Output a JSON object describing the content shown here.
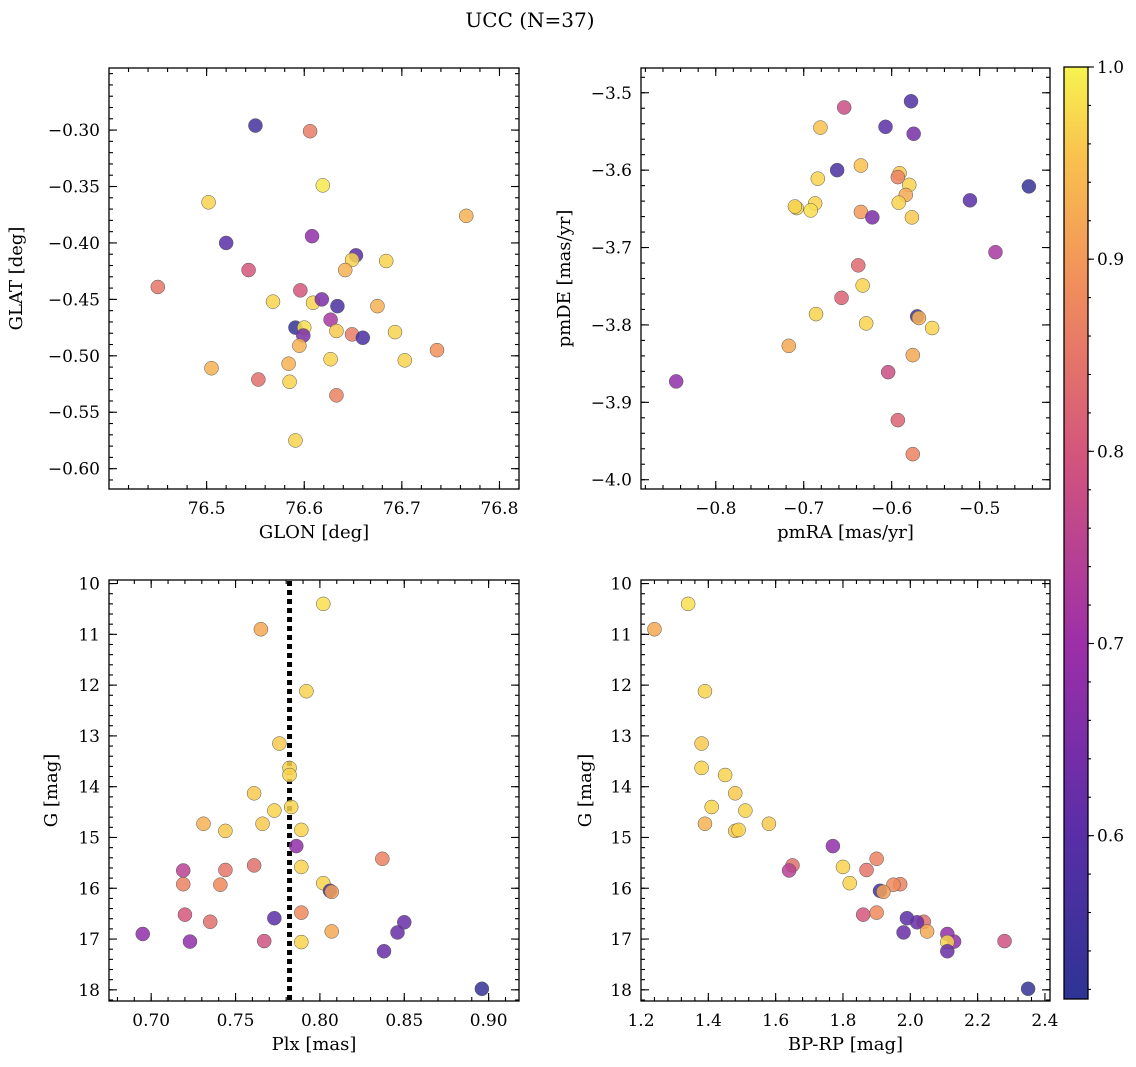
{
  "title": "UCC (N=37)",
  "colorbar": {
    "min": 0.515,
    "max": 1.0,
    "ticks": [
      1.0,
      0.9,
      0.8,
      0.7,
      0.6
    ],
    "tick_labels": [
      "1.0",
      "0.9",
      "0.8",
      "0.7",
      "0.6"
    ],
    "colormap": "plasma"
  },
  "chart_data": [
    {
      "type": "scatter",
      "name": "sky-positions",
      "xlabel": "GLON [deg]",
      "ylabel": "GLAT [deg]",
      "xlim": [
        76.4,
        76.82
      ],
      "ylim": [
        -0.618,
        -0.245
      ],
      "xticks": [
        76.5,
        76.6,
        76.7,
        76.8
      ],
      "xtick_labels": [
        "76.5",
        "76.6",
        "76.7",
        "76.8"
      ],
      "yticks": [
        -0.3,
        -0.35,
        -0.4,
        -0.45,
        -0.5,
        -0.55,
        -0.6
      ],
      "ytick_labels": [
        "−0.30",
        "−0.35",
        "−0.40",
        "−0.45",
        "−0.50",
        "−0.55",
        "−0.60"
      ],
      "inverted_y": false,
      "points": [
        {
          "x": 76.55,
          "y": -0.296,
          "c": 0.56
        },
        {
          "x": 76.606,
          "y": -0.301,
          "c": 0.86
        },
        {
          "x": 76.619,
          "y": -0.349,
          "c": 0.99
        },
        {
          "x": 76.502,
          "y": -0.364,
          "c": 0.97
        },
        {
          "x": 76.766,
          "y": -0.376,
          "c": 0.93
        },
        {
          "x": 76.608,
          "y": -0.394,
          "c": 0.68
        },
        {
          "x": 76.52,
          "y": -0.4,
          "c": 0.6
        },
        {
          "x": 76.653,
          "y": -0.411,
          "c": 0.6
        },
        {
          "x": 76.649,
          "y": -0.415,
          "c": 0.97
        },
        {
          "x": 76.684,
          "y": -0.416,
          "c": 0.97
        },
        {
          "x": 76.543,
          "y": -0.424,
          "c": 0.8
        },
        {
          "x": 76.642,
          "y": -0.424,
          "c": 0.93
        },
        {
          "x": 76.45,
          "y": -0.439,
          "c": 0.85
        },
        {
          "x": 76.596,
          "y": -0.442,
          "c": 0.8
        },
        {
          "x": 76.568,
          "y": -0.452,
          "c": 0.97
        },
        {
          "x": 76.609,
          "y": -0.453,
          "c": 0.97
        },
        {
          "x": 76.618,
          "y": -0.45,
          "c": 0.65
        },
        {
          "x": 76.634,
          "y": -0.456,
          "c": 0.57
        },
        {
          "x": 76.675,
          "y": -0.456,
          "c": 0.93
        },
        {
          "x": 76.627,
          "y": -0.468,
          "c": 0.72
        },
        {
          "x": 76.591,
          "y": -0.475,
          "c": 0.53
        },
        {
          "x": 76.6,
          "y": -0.475,
          "c": 0.98
        },
        {
          "x": 76.599,
          "y": -0.482,
          "c": 0.65
        },
        {
          "x": 76.633,
          "y": -0.478,
          "c": 0.96
        },
        {
          "x": 76.693,
          "y": -0.479,
          "c": 0.97
        },
        {
          "x": 76.649,
          "y": -0.481,
          "c": 0.86
        },
        {
          "x": 76.66,
          "y": -0.484,
          "c": 0.57
        },
        {
          "x": 76.595,
          "y": -0.491,
          "c": 0.93
        },
        {
          "x": 76.736,
          "y": -0.495,
          "c": 0.89
        },
        {
          "x": 76.627,
          "y": -0.503,
          "c": 0.97
        },
        {
          "x": 76.703,
          "y": -0.504,
          "c": 0.97
        },
        {
          "x": 76.584,
          "y": -0.507,
          "c": 0.93
        },
        {
          "x": 76.505,
          "y": -0.511,
          "c": 0.93
        },
        {
          "x": 76.553,
          "y": -0.521,
          "c": 0.84
        },
        {
          "x": 76.585,
          "y": -0.523,
          "c": 0.97
        },
        {
          "x": 76.633,
          "y": -0.535,
          "c": 0.87
        },
        {
          "x": 76.591,
          "y": -0.575,
          "c": 0.97
        }
      ]
    },
    {
      "type": "scatter",
      "name": "proper-motions",
      "xlabel": "pmRA [mas/yr]",
      "ylabel": "pmDE [mas/yr]",
      "xlim": [
        -0.885,
        -0.42
      ],
      "ylim": [
        -4.012,
        -3.468
      ],
      "xticks": [
        -0.8,
        -0.7,
        -0.6,
        -0.5
      ],
      "xtick_labels": [
        "−0.8",
        "−0.7",
        "−0.6",
        "−0.5"
      ],
      "yticks": [
        -3.5,
        -3.6,
        -3.7,
        -3.8,
        -3.9,
        -4.0
      ],
      "ytick_labels": [
        "−3.5",
        "−3.6",
        "−3.7",
        "−3.8",
        "−3.9",
        "−4.0"
      ],
      "inverted_y": false,
      "points": [
        {
          "x": -0.578,
          "y": -3.511,
          "c": 0.58
        },
        {
          "x": -0.654,
          "y": -3.519,
          "c": 0.78
        },
        {
          "x": -0.681,
          "y": -3.545,
          "c": 0.95
        },
        {
          "x": -0.607,
          "y": -3.544,
          "c": 0.6
        },
        {
          "x": -0.575,
          "y": -3.553,
          "c": 0.64
        },
        {
          "x": -0.635,
          "y": -3.594,
          "c": 0.95
        },
        {
          "x": -0.662,
          "y": -3.6,
          "c": 0.57
        },
        {
          "x": -0.591,
          "y": -3.604,
          "c": 0.96
        },
        {
          "x": -0.593,
          "y": -3.609,
          "c": 0.87
        },
        {
          "x": -0.684,
          "y": -3.611,
          "c": 0.97
        },
        {
          "x": -0.58,
          "y": -3.619,
          "c": 0.97
        },
        {
          "x": -0.444,
          "y": -3.621,
          "c": 0.53
        },
        {
          "x": -0.584,
          "y": -3.632,
          "c": 0.92
        },
        {
          "x": -0.592,
          "y": -3.642,
          "c": 0.97
        },
        {
          "x": -0.511,
          "y": -3.639,
          "c": 0.6
        },
        {
          "x": -0.687,
          "y": -3.643,
          "c": 0.97
        },
        {
          "x": -0.708,
          "y": -3.649,
          "c": 0.97
        },
        {
          "x": -0.71,
          "y": -3.647,
          "c": 0.97
        },
        {
          "x": -0.692,
          "y": -3.652,
          "c": 0.98
        },
        {
          "x": -0.635,
          "y": -3.654,
          "c": 0.9
        },
        {
          "x": -0.622,
          "y": -3.661,
          "c": 0.65
        },
        {
          "x": -0.577,
          "y": -3.661,
          "c": 0.96
        },
        {
          "x": -0.482,
          "y": -3.706,
          "c": 0.72
        },
        {
          "x": -0.638,
          "y": -3.723,
          "c": 0.83
        },
        {
          "x": -0.633,
          "y": -3.749,
          "c": 0.97
        },
        {
          "x": -0.657,
          "y": -3.765,
          "c": 0.82
        },
        {
          "x": -0.686,
          "y": -3.786,
          "c": 0.97
        },
        {
          "x": -0.571,
          "y": -3.789,
          "c": 0.55
        },
        {
          "x": -0.569,
          "y": -3.791,
          "c": 0.93
        },
        {
          "x": -0.629,
          "y": -3.798,
          "c": 0.97
        },
        {
          "x": -0.554,
          "y": -3.804,
          "c": 0.97
        },
        {
          "x": -0.717,
          "y": -3.827,
          "c": 0.92
        },
        {
          "x": -0.576,
          "y": -3.839,
          "c": 0.92
        },
        {
          "x": -0.604,
          "y": -3.861,
          "c": 0.78
        },
        {
          "x": -0.845,
          "y": -3.873,
          "c": 0.68
        },
        {
          "x": -0.593,
          "y": -3.923,
          "c": 0.82
        },
        {
          "x": -0.576,
          "y": -3.967,
          "c": 0.87
        }
      ]
    },
    {
      "type": "scatter",
      "name": "parallax-magnitude",
      "xlabel": "Plx [mas]",
      "ylabel": "G [mag]",
      "xlim": [
        0.675,
        0.918
      ],
      "ylim": [
        18.22,
        9.93
      ],
      "xticks": [
        0.7,
        0.75,
        0.8,
        0.85,
        0.9
      ],
      "xtick_labels": [
        "0.70",
        "0.75",
        "0.80",
        "0.85",
        "0.90"
      ],
      "yticks": [
        10,
        11,
        12,
        13,
        14,
        15,
        16,
        17,
        18
      ],
      "ytick_labels": [
        "10",
        "11",
        "12",
        "13",
        "14",
        "15",
        "16",
        "17",
        "18"
      ],
      "inverted_y": true,
      "vline": {
        "x": 0.782,
        "style": "dotted"
      },
      "points": [
        {
          "x": 0.802,
          "y": 10.4,
          "c": 0.98
        },
        {
          "x": 0.765,
          "y": 10.9,
          "c": 0.92
        },
        {
          "x": 0.792,
          "y": 12.12,
          "c": 0.97
        },
        {
          "x": 0.776,
          "y": 13.15,
          "c": 0.96
        },
        {
          "x": 0.782,
          "y": 13.63,
          "c": 0.97
        },
        {
          "x": 0.782,
          "y": 13.77,
          "c": 0.97
        },
        {
          "x": 0.761,
          "y": 14.13,
          "c": 0.96
        },
        {
          "x": 0.783,
          "y": 14.4,
          "c": 0.97
        },
        {
          "x": 0.773,
          "y": 14.47,
          "c": 0.97
        },
        {
          "x": 0.731,
          "y": 14.73,
          "c": 0.93
        },
        {
          "x": 0.766,
          "y": 14.73,
          "c": 0.96
        },
        {
          "x": 0.744,
          "y": 14.87,
          "c": 0.96
        },
        {
          "x": 0.789,
          "y": 14.85,
          "c": 0.97
        },
        {
          "x": 0.786,
          "y": 15.17,
          "c": 0.68
        },
        {
          "x": 0.837,
          "y": 15.42,
          "c": 0.87
        },
        {
          "x": 0.761,
          "y": 15.55,
          "c": 0.84
        },
        {
          "x": 0.789,
          "y": 15.58,
          "c": 0.97
        },
        {
          "x": 0.744,
          "y": 15.64,
          "c": 0.85
        },
        {
          "x": 0.719,
          "y": 15.65,
          "c": 0.75
        },
        {
          "x": 0.719,
          "y": 15.92,
          "c": 0.87
        },
        {
          "x": 0.741,
          "y": 15.93,
          "c": 0.88
        },
        {
          "x": 0.802,
          "y": 15.9,
          "c": 0.97
        },
        {
          "x": 0.806,
          "y": 16.05,
          "c": 0.55
        },
        {
          "x": 0.807,
          "y": 16.07,
          "c": 0.91
        },
        {
          "x": 0.789,
          "y": 16.48,
          "c": 0.88
        },
        {
          "x": 0.72,
          "y": 16.52,
          "c": 0.8
        },
        {
          "x": 0.773,
          "y": 16.59,
          "c": 0.6
        },
        {
          "x": 0.735,
          "y": 16.66,
          "c": 0.84
        },
        {
          "x": 0.85,
          "y": 16.67,
          "c": 0.62
        },
        {
          "x": 0.807,
          "y": 16.85,
          "c": 0.92
        },
        {
          "x": 0.846,
          "y": 16.87,
          "c": 0.62
        },
        {
          "x": 0.695,
          "y": 16.9,
          "c": 0.68
        },
        {
          "x": 0.723,
          "y": 17.05,
          "c": 0.68
        },
        {
          "x": 0.767,
          "y": 17.04,
          "c": 0.79
        },
        {
          "x": 0.789,
          "y": 17.06,
          "c": 0.97
        },
        {
          "x": 0.838,
          "y": 17.24,
          "c": 0.62
        },
        {
          "x": 0.896,
          "y": 17.98,
          "c": 0.53
        }
      ]
    },
    {
      "type": "scatter",
      "name": "color-magnitude",
      "xlabel": "BP-RP [mag]",
      "ylabel": "G [mag]",
      "xlim": [
        1.2,
        2.415
      ],
      "ylim": [
        18.22,
        9.93
      ],
      "xticks": [
        1.2,
        1.4,
        1.6,
        1.8,
        2.0,
        2.2,
        2.4
      ],
      "xtick_labels": [
        "1.2",
        "1.4",
        "1.6",
        "1.8",
        "2.0",
        "2.2",
        "2.4"
      ],
      "yticks": [
        10,
        11,
        12,
        13,
        14,
        15,
        16,
        17,
        18
      ],
      "ytick_labels": [
        "10",
        "11",
        "12",
        "13",
        "14",
        "15",
        "16",
        "17",
        "18"
      ],
      "inverted_y": true,
      "points": [
        {
          "x": 1.34,
          "y": 10.4,
          "c": 0.98
        },
        {
          "x": 1.24,
          "y": 10.9,
          "c": 0.92
        },
        {
          "x": 1.39,
          "y": 12.12,
          "c": 0.97
        },
        {
          "x": 1.38,
          "y": 13.15,
          "c": 0.96
        },
        {
          "x": 1.38,
          "y": 13.63,
          "c": 0.97
        },
        {
          "x": 1.45,
          "y": 13.77,
          "c": 0.97
        },
        {
          "x": 1.48,
          "y": 14.13,
          "c": 0.96
        },
        {
          "x": 1.41,
          "y": 14.4,
          "c": 0.97
        },
        {
          "x": 1.51,
          "y": 14.47,
          "c": 0.97
        },
        {
          "x": 1.39,
          "y": 14.73,
          "c": 0.93
        },
        {
          "x": 1.58,
          "y": 14.73,
          "c": 0.96
        },
        {
          "x": 1.48,
          "y": 14.87,
          "c": 0.96
        },
        {
          "x": 1.49,
          "y": 14.85,
          "c": 0.97
        },
        {
          "x": 1.77,
          "y": 15.17,
          "c": 0.68
        },
        {
          "x": 1.9,
          "y": 15.42,
          "c": 0.87
        },
        {
          "x": 1.65,
          "y": 15.55,
          "c": 0.84
        },
        {
          "x": 1.8,
          "y": 15.58,
          "c": 0.97
        },
        {
          "x": 1.87,
          "y": 15.64,
          "c": 0.85
        },
        {
          "x": 1.64,
          "y": 15.65,
          "c": 0.75
        },
        {
          "x": 1.97,
          "y": 15.92,
          "c": 0.87
        },
        {
          "x": 1.95,
          "y": 15.93,
          "c": 0.88
        },
        {
          "x": 1.82,
          "y": 15.9,
          "c": 0.97
        },
        {
          "x": 1.91,
          "y": 16.05,
          "c": 0.55
        },
        {
          "x": 1.92,
          "y": 16.07,
          "c": 0.91
        },
        {
          "x": 1.9,
          "y": 16.48,
          "c": 0.88
        },
        {
          "x": 1.86,
          "y": 16.52,
          "c": 0.8
        },
        {
          "x": 1.99,
          "y": 16.59,
          "c": 0.6
        },
        {
          "x": 2.04,
          "y": 16.66,
          "c": 0.84
        },
        {
          "x": 2.02,
          "y": 16.67,
          "c": 0.62
        },
        {
          "x": 2.05,
          "y": 16.85,
          "c": 0.92
        },
        {
          "x": 1.98,
          "y": 16.87,
          "c": 0.62
        },
        {
          "x": 2.11,
          "y": 16.9,
          "c": 0.68
        },
        {
          "x": 2.13,
          "y": 17.05,
          "c": 0.68
        },
        {
          "x": 2.28,
          "y": 17.04,
          "c": 0.79
        },
        {
          "x": 2.11,
          "y": 17.06,
          "c": 0.97
        },
        {
          "x": 2.11,
          "y": 17.24,
          "c": 0.62
        },
        {
          "x": 2.35,
          "y": 17.98,
          "c": 0.53
        }
      ]
    }
  ]
}
